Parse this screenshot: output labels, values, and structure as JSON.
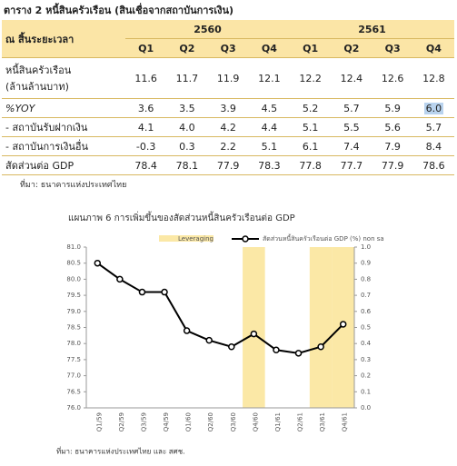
{
  "table": {
    "title": "ตาราง 2   หนี้สินครัวเรือน (สินเชื่อจากสถาบันการเงิน)",
    "corner": "ณ สิ้นระยะเวลา",
    "years": [
      "2560",
      "2561"
    ],
    "quarters": [
      "Q1",
      "Q2",
      "Q3",
      "Q4",
      "Q1",
      "Q2",
      "Q3",
      "Q4"
    ],
    "rows": [
      {
        "label": [
          "หนี้สินครัวเรือน",
          "(ล้านล้านบาท)"
        ],
        "cells": [
          "11.6",
          "11.7",
          "11.9",
          "12.1",
          "12.2",
          "12.4",
          "12.6",
          "12.8"
        ]
      },
      {
        "label": [
          "%YOY"
        ],
        "cells": [
          "3.6",
          "3.5",
          "3.9",
          "4.5",
          "5.2",
          "5.7",
          "5.9",
          "6.0"
        ]
      },
      {
        "label": [
          "- สถาบันรับฝากเงิน"
        ],
        "cells": [
          "4.1",
          "4.0",
          "4.2",
          "4.4",
          "5.1",
          "5.5",
          "5.6",
          "5.7"
        ]
      },
      {
        "label": [
          "- สถาบันการเงินอื่น"
        ],
        "cells": [
          "-0.3",
          "0.3",
          "2.2",
          "5.1",
          "6.1",
          "7.4",
          "7.9",
          "8.4"
        ]
      },
      {
        "label": [
          "สัดส่วนต่อ GDP"
        ],
        "cells": [
          "78.4",
          "78.1",
          "77.9",
          "78.3",
          "77.8",
          "77.7",
          "77.9",
          "78.6"
        ]
      }
    ],
    "source": "ที่มา:   ธนาคารแห่งประเทศไทย"
  },
  "chart_data": {
    "type": "line",
    "title": "แผนภาพ 6 การเพิ่มขึ้นของสัดส่วนหนี้สินครัวเรือนต่อ GDP",
    "categories": [
      "Q1/59",
      "Q2/59",
      "Q3/59",
      "Q4/59",
      "Q1/60",
      "Q2/60",
      "Q3/60",
      "Q4/60",
      "Q1/61",
      "Q2/61",
      "Q3/61",
      "Q4/61"
    ],
    "series": [
      {
        "name": "Leveraging",
        "type": "bar",
        "axis": "y2",
        "color": "#fbe8a6",
        "values": [
          0,
          0,
          0,
          0,
          0,
          0,
          0,
          1,
          0,
          0,
          1,
          1
        ]
      },
      {
        "name": "สัดส่วนหนี้สินครัวเรือนต่อ GDP (%) non sa",
        "type": "line",
        "color": "#000000",
        "values": [
          80.5,
          80.0,
          79.6,
          79.6,
          78.4,
          78.1,
          77.9,
          78.3,
          77.8,
          77.7,
          77.9,
          78.6
        ]
      }
    ],
    "ylim": [
      76.0,
      81.0
    ],
    "yticks": [
      {
        "value": 76,
        "label": "76.0"
      },
      {
        "value": 76.5,
        "label": "76.5"
      },
      {
        "value": 77,
        "label": "77.0"
      },
      {
        "value": 77.5,
        "label": "77.5"
      },
      {
        "value": 78,
        "label": "78.0"
      },
      {
        "value": 78.5,
        "label": "78.5"
      },
      {
        "value": 79,
        "label": "79.0"
      },
      {
        "value": 79.5,
        "label": "79.5"
      },
      {
        "value": 80,
        "label": "80.0"
      },
      {
        "value": 80.5,
        "label": "80.5"
      },
      {
        "value": 81,
        "label": "81.0"
      }
    ],
    "y2lim": [
      0,
      1
    ],
    "y2ticks": [
      {
        "value": 0,
        "label": "0.0"
      },
      {
        "value": 0.1,
        "label": "0.1"
      },
      {
        "value": 0.2,
        "label": "0.2"
      },
      {
        "value": 0.3,
        "label": "0.3"
      },
      {
        "value": 0.4,
        "label": "0.4"
      },
      {
        "value": 0.5,
        "label": "0.5"
      },
      {
        "value": 0.6,
        "label": "0.6"
      },
      {
        "value": 0.7,
        "label": "0.7"
      },
      {
        "value": 0.8,
        "label": "0.8"
      },
      {
        "value": 0.9,
        "label": "0.9"
      },
      {
        "value": 1,
        "label": "1.0"
      }
    ],
    "source": "ที่มา: ธนาคารแห่งประเทศไทย และ สศช."
  }
}
